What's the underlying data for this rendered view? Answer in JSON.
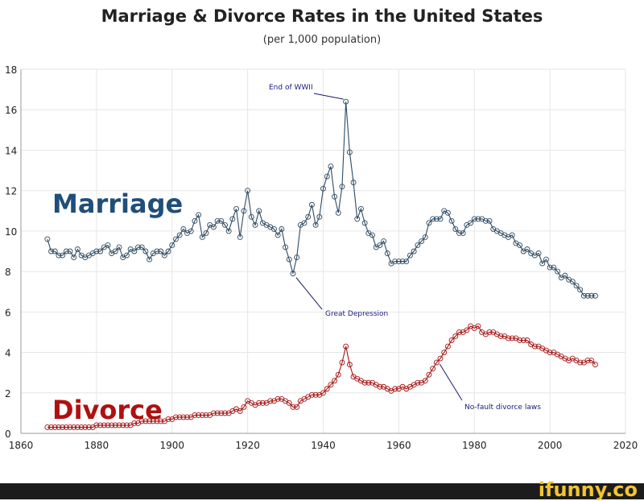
{
  "chart_data": {
    "type": "line",
    "title": "Marriage & Divorce Rates in the United States",
    "subtitle": "(per 1,000 population)",
    "xlabel": "",
    "ylabel": "",
    "xlim": [
      1860,
      2020
    ],
    "ylim": [
      0,
      18
    ],
    "xticks": [
      1860,
      1880,
      1900,
      1920,
      1940,
      1960,
      1980,
      2000,
      2020
    ],
    "yticks": [
      0,
      2,
      4,
      6,
      8,
      10,
      12,
      14,
      16,
      18
    ],
    "grid": true,
    "start_year": 1867,
    "series": [
      {
        "name": "Marriage",
        "color": "#2e4a62",
        "label_color": "#1f4e79",
        "values": [
          9.6,
          9.0,
          9.0,
          8.8,
          8.8,
          9.0,
          9.0,
          8.7,
          9.1,
          8.8,
          8.7,
          8.8,
          8.9,
          9.0,
          9.0,
          9.2,
          9.3,
          8.9,
          9.0,
          9.2,
          8.7,
          8.8,
          9.1,
          9.0,
          9.2,
          9.2,
          9.0,
          8.6,
          8.9,
          9.0,
          9.0,
          8.8,
          9.0,
          9.3,
          9.6,
          9.8,
          10.1,
          9.9,
          10.0,
          10.5,
          10.8,
          9.7,
          9.9,
          10.3,
          10.2,
          10.5,
          10.5,
          10.3,
          10.0,
          10.6,
          11.1,
          9.7,
          11.0,
          12.0,
          10.7,
          10.3,
          11.0,
          10.4,
          10.3,
          10.2,
          10.1,
          9.8,
          10.1,
          9.2,
          8.6,
          7.9,
          8.7,
          10.3,
          10.4,
          10.7,
          11.3,
          10.3,
          10.7,
          12.1,
          12.7,
          13.2,
          11.7,
          10.9,
          12.2,
          16.4,
          13.9,
          12.4,
          10.6,
          11.1,
          10.4,
          9.9,
          9.8,
          9.2,
          9.3,
          9.5,
          8.9,
          8.4,
          8.5,
          8.5,
          8.5,
          8.5,
          8.8,
          9.0,
          9.3,
          9.5,
          9.7,
          10.4,
          10.6,
          10.6,
          10.6,
          11.0,
          10.9,
          10.5,
          10.1,
          9.9,
          9.9,
          10.3,
          10.4,
          10.6,
          10.6,
          10.6,
          10.5,
          10.5,
          10.1,
          10.0,
          9.9,
          9.8,
          9.7,
          9.8,
          9.4,
          9.3,
          9.0,
          9.1,
          8.9,
          8.8,
          8.9,
          8.4,
          8.6,
          8.2,
          8.2,
          8.0,
          7.7,
          7.8,
          7.6,
          7.5,
          7.3,
          7.1,
          6.8,
          6.8,
          6.8,
          6.8
        ]
      },
      {
        "name": "Divorce",
        "color": "#a31515",
        "label_color": "#b01010",
        "values": [
          0.3,
          0.3,
          0.3,
          0.3,
          0.3,
          0.3,
          0.3,
          0.3,
          0.3,
          0.3,
          0.3,
          0.3,
          0.3,
          0.4,
          0.4,
          0.4,
          0.4,
          0.4,
          0.4,
          0.4,
          0.4,
          0.4,
          0.4,
          0.5,
          0.5,
          0.6,
          0.6,
          0.6,
          0.6,
          0.6,
          0.6,
          0.6,
          0.7,
          0.7,
          0.8,
          0.8,
          0.8,
          0.8,
          0.8,
          0.9,
          0.9,
          0.9,
          0.9,
          0.9,
          1.0,
          1.0,
          1.0,
          1.0,
          1.0,
          1.1,
          1.2,
          1.1,
          1.3,
          1.6,
          1.5,
          1.4,
          1.5,
          1.5,
          1.5,
          1.6,
          1.6,
          1.7,
          1.7,
          1.6,
          1.5,
          1.3,
          1.3,
          1.6,
          1.7,
          1.8,
          1.9,
          1.9,
          1.9,
          2.0,
          2.2,
          2.4,
          2.6,
          2.9,
          3.5,
          4.3,
          3.4,
          2.8,
          2.7,
          2.6,
          2.5,
          2.5,
          2.5,
          2.4,
          2.3,
          2.3,
          2.2,
          2.1,
          2.2,
          2.2,
          2.3,
          2.2,
          2.3,
          2.4,
          2.5,
          2.5,
          2.6,
          2.9,
          3.2,
          3.5,
          3.7,
          4.0,
          4.3,
          4.6,
          4.8,
          5.0,
          5.0,
          5.1,
          5.3,
          5.2,
          5.3,
          5.0,
          4.9,
          5.0,
          5.0,
          4.9,
          4.8,
          4.8,
          4.7,
          4.7,
          4.7,
          4.6,
          4.6,
          4.6,
          4.4,
          4.3,
          4.3,
          4.2,
          4.1,
          4.0,
          4.0,
          3.9,
          3.8,
          3.7,
          3.6,
          3.7,
          3.6,
          3.5,
          3.5,
          3.6,
          3.6,
          3.4
        ]
      }
    ],
    "annotations": [
      {
        "text": "End of WWII",
        "year": 1946,
        "series": "Marriage"
      },
      {
        "text": "Great Depression",
        "year": 1932,
        "series": "Marriage"
      },
      {
        "text": "No-fault divorce laws",
        "year": 1970,
        "series": "Divorce"
      }
    ]
  },
  "watermark": "ifunny.co"
}
